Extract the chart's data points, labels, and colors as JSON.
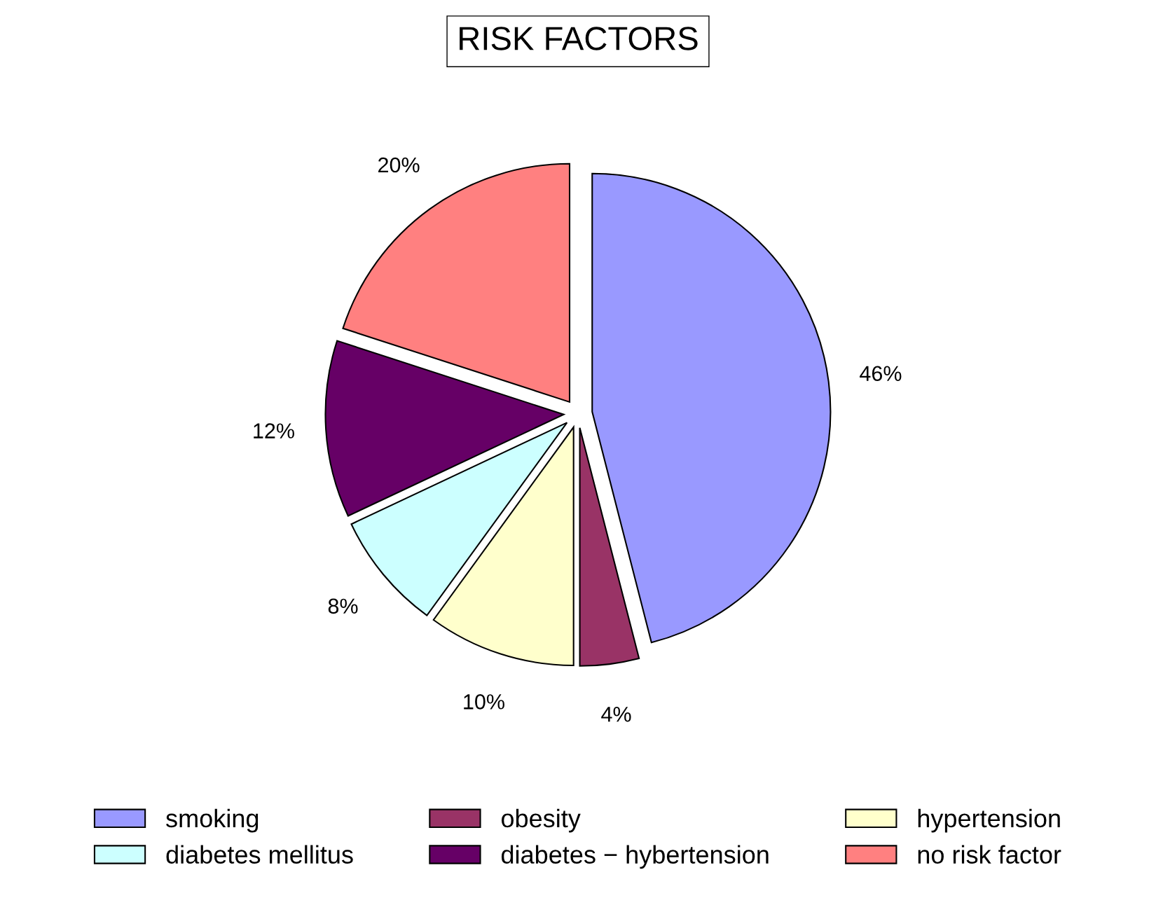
{
  "chart_data": {
    "type": "pie",
    "title": "RISK FACTORS",
    "categories": [
      "smoking",
      "obesity",
      "hypertension",
      "diabetes mellitus",
      "diabetes − hybertension",
      "no risk factor"
    ],
    "values": [
      46,
      4,
      10,
      8,
      12,
      20
    ],
    "colors": [
      "#9999ff",
      "#993366",
      "#ffffcc",
      "#ccffff",
      "#660066",
      "#ff8080"
    ],
    "value_labels": [
      "46%",
      "4%",
      "10%",
      "8%",
      "12%",
      "20%"
    ],
    "legend": "bottom"
  }
}
